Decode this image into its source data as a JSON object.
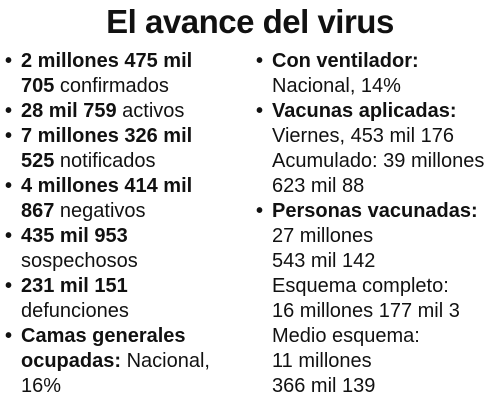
{
  "title": "El avance del virus",
  "left": [
    {
      "lines": [
        {
          "b": "2 millones 475 mil",
          "r": ""
        },
        {
          "b": "705",
          "r": " confirmados"
        }
      ]
    },
    {
      "lines": [
        {
          "b": "28 mil 759",
          "r": " activos"
        }
      ]
    },
    {
      "lines": [
        {
          "b": "7 millones 326 mil",
          "r": ""
        },
        {
          "b": "525",
          "r": " notificados"
        }
      ]
    },
    {
      "lines": [
        {
          "b": "4 millones 414 mil",
          "r": ""
        },
        {
          "b": "867",
          "r": " negativos"
        }
      ]
    },
    {
      "lines": [
        {
          "b": "435 mil 953",
          "r": ""
        },
        {
          "b": "",
          "r": "sospechosos"
        }
      ]
    },
    {
      "lines": [
        {
          "b": "231 mil 151",
          "r": ""
        },
        {
          "b": "",
          "r": "defunciones"
        }
      ]
    },
    {
      "lines": [
        {
          "b": "Camas generales",
          "r": ""
        },
        {
          "b": "ocupadas:",
          "r": " Nacional,"
        },
        {
          "b": "",
          "r": "16%"
        }
      ]
    }
  ],
  "right": [
    {
      "lines": [
        {
          "b": "Con ventilador:",
          "r": ""
        },
        {
          "b": "",
          "r": "Nacional, 14%"
        }
      ]
    },
    {
      "lines": [
        {
          "b": "Vacunas aplicadas:",
          "r": ""
        },
        {
          "b": "",
          "r": "Viernes, 453 mil 176"
        },
        {
          "b": "",
          "r": "Acumulado: 39 millones"
        },
        {
          "b": "",
          "r": "623 mil 88"
        }
      ]
    },
    {
      "lines": [
        {
          "b": "Personas vacunadas:",
          "r": ""
        },
        {
          "b": "",
          "r": "27 millones"
        },
        {
          "b": "",
          "r": "543 mil 142"
        },
        {
          "b": "",
          "r": "Esquema completo:"
        },
        {
          "b": "",
          "r": "16 millones 177 mil 3"
        },
        {
          "b": "",
          "r": "Medio esquema:"
        },
        {
          "b": "",
          "r": "11 millones"
        },
        {
          "b": "",
          "r": "366 mil 139"
        }
      ]
    }
  ]
}
